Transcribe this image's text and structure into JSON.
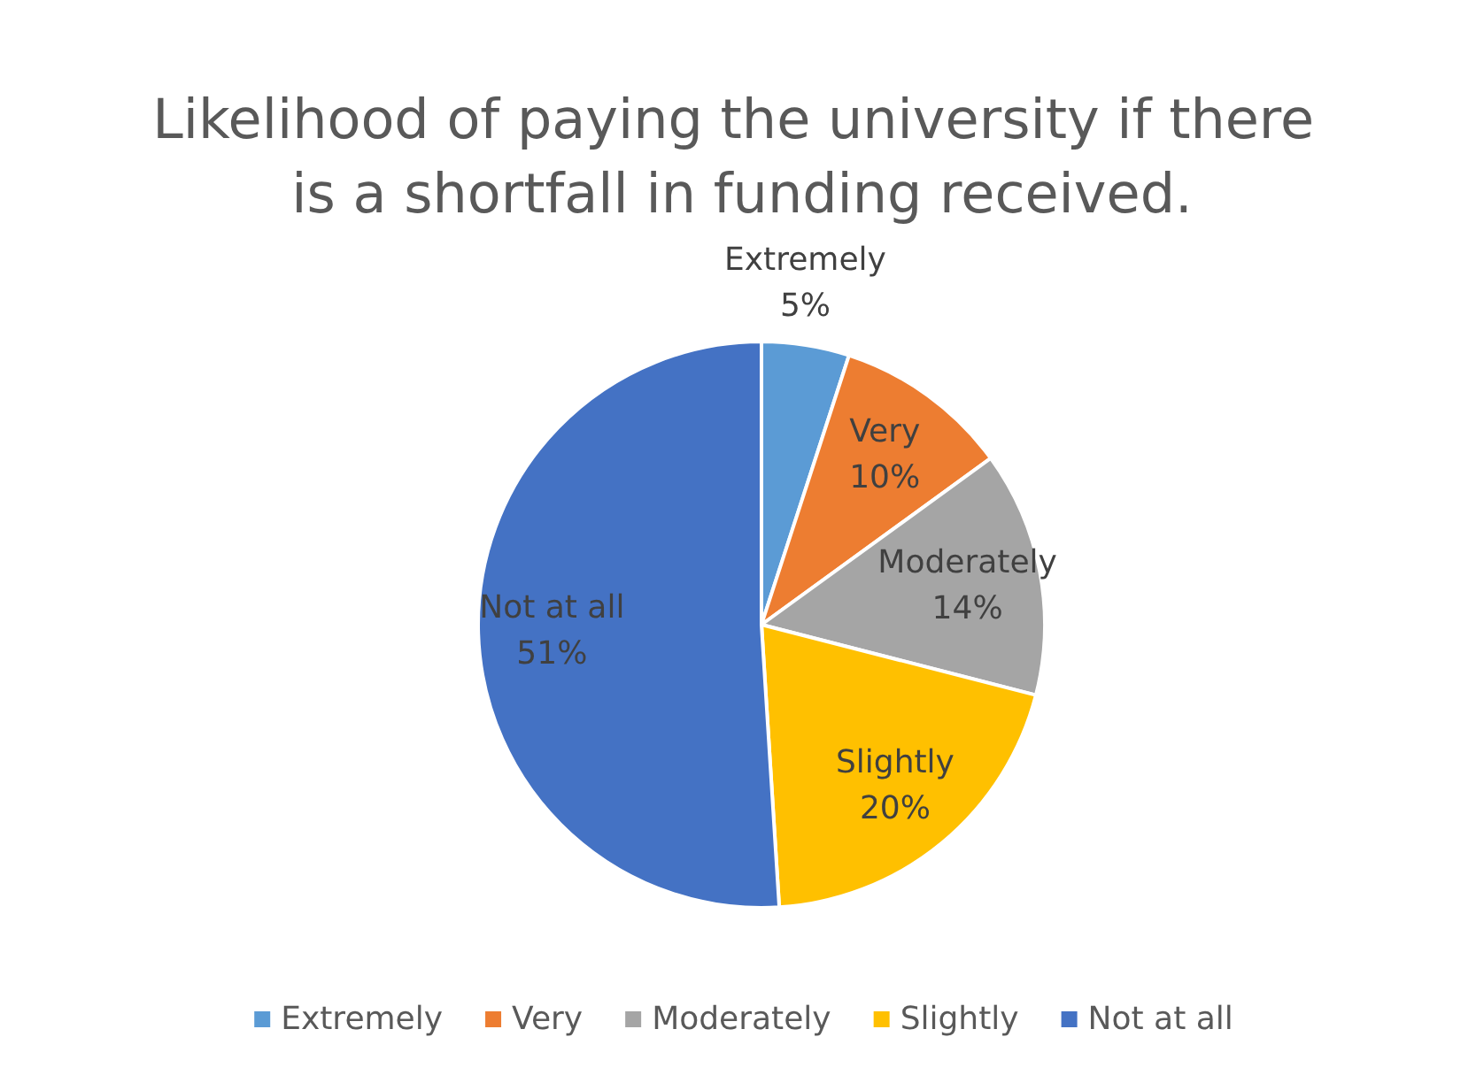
{
  "chart_data": {
    "type": "pie",
    "title": "Likelihood of paying the university if there is a shortfall in funding received.",
    "categories": [
      "Extremely",
      "Very",
      "Moderately",
      "Slightly",
      "Not at all"
    ],
    "values": [
      5,
      10,
      14,
      20,
      51
    ],
    "value_labels": [
      "5%",
      "10%",
      "14%",
      "20%",
      "51%"
    ],
    "colors": [
      "#5b9bd5",
      "#ed7d31",
      "#a5a5a5",
      "#ffc000",
      "#4472c4"
    ],
    "legend": "bottom"
  }
}
